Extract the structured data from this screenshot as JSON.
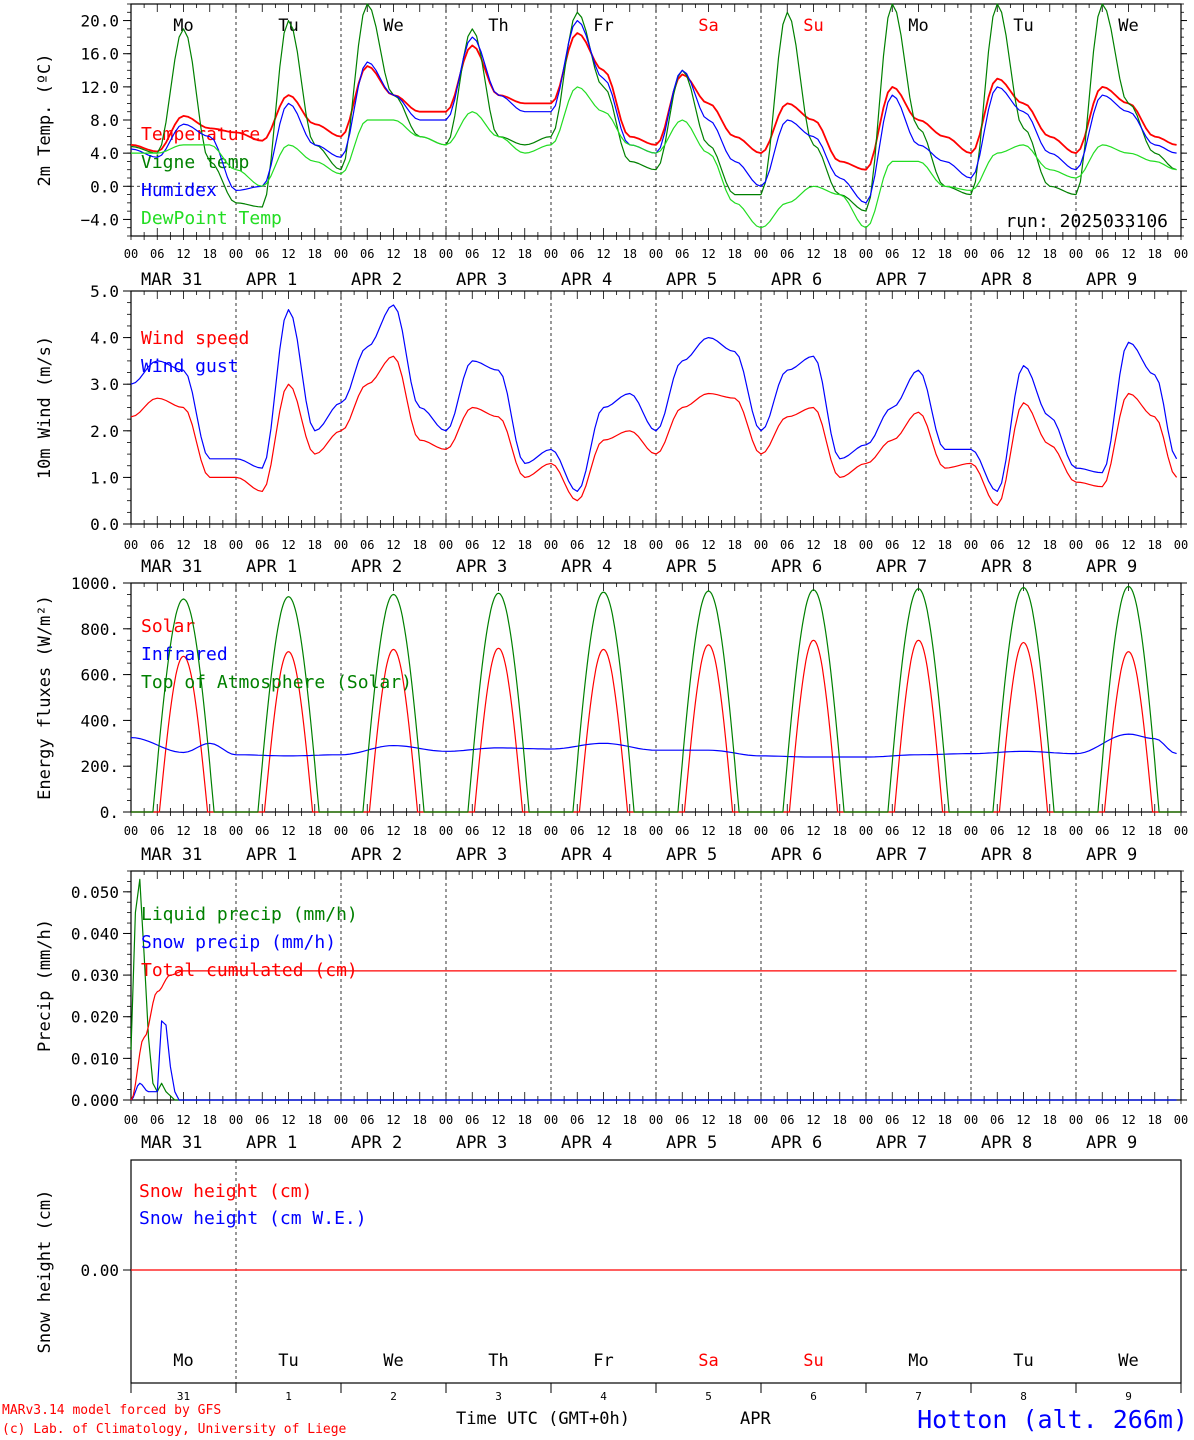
{
  "colors": {
    "red": "#ff0000",
    "blue": "#0000ff",
    "green": "#008000",
    "lightgreen": "#22dd22",
    "darkblue": "#0000cc",
    "weekend": "#ff0000"
  },
  "days": [
    {
      "name": "Mo",
      "date": "MAR 31",
      "num": "31",
      "weekend": false
    },
    {
      "name": "Tu",
      "date": "APR  1",
      "num": "1",
      "weekend": false
    },
    {
      "name": "We",
      "date": "APR  2",
      "num": "2",
      "weekend": false
    },
    {
      "name": "Th",
      "date": "APR  3",
      "num": "3",
      "weekend": false
    },
    {
      "name": "Fr",
      "date": "APR  4",
      "num": "4",
      "weekend": false
    },
    {
      "name": "Sa",
      "date": "APR  5",
      "num": "5",
      "weekend": true
    },
    {
      "name": "Su",
      "date": "APR  6",
      "num": "6",
      "weekend": true
    },
    {
      "name": "Mo",
      "date": "APR  7",
      "num": "7",
      "weekend": false
    },
    {
      "name": "Tu",
      "date": "APR  8",
      "num": "8",
      "weekend": false
    },
    {
      "name": "We",
      "date": "APR  9",
      "num": "9",
      "weekend": false
    }
  ],
  "hour_ticks": [
    "00",
    "06",
    "12",
    "18"
  ],
  "final_tick": "00",
  "run_label": "run: 2025033106",
  "footer": {
    "model": "MARv3.14 model forced by GFS",
    "lab": "(c) Lab. of Climatology, University of Liege",
    "time_axis": "Time UTC (GMT+0h)",
    "month": "APR",
    "station": "Hotton (alt. 266m)"
  },
  "chart_data": [
    {
      "type": "line",
      "ylabel": "2m Temp. (ºC)",
      "ylim": [
        -6,
        22
      ],
      "yticks": [
        -4,
        0,
        4,
        8,
        12,
        16,
        20
      ],
      "yticklabels": [
        "−4.0",
        "0.0",
        "4.0",
        "8.0",
        "12.0",
        "16.0",
        "20.0"
      ],
      "zero_line": true,
      "series": [
        {
          "name": "Temperature",
          "color": "red",
          "x": [
            0,
            6,
            12,
            18,
            24,
            30,
            36,
            42,
            48,
            54,
            60,
            66,
            72,
            78,
            84,
            90,
            96,
            102,
            108,
            114,
            120,
            126,
            132,
            138,
            144,
            150,
            156,
            162,
            168,
            174,
            180,
            186,
            192,
            198,
            204,
            210,
            216,
            222,
            228,
            234,
            239
          ],
          "values": [
            5,
            4.2,
            8.5,
            7,
            6.5,
            5.5,
            11,
            7.5,
            6,
            14.5,
            11,
            9,
            9,
            17,
            11,
            10,
            10,
            18.5,
            14,
            6,
            5,
            13.5,
            10,
            6,
            4,
            10,
            8,
            3,
            2,
            12,
            8,
            6,
            4,
            13,
            10,
            6,
            4,
            12,
            10,
            6,
            5
          ]
        },
        {
          "name": "Vigne temp",
          "color": "green",
          "x": [
            0,
            6,
            12,
            18,
            24,
            30,
            36,
            42,
            48,
            54,
            60,
            66,
            72,
            78,
            84,
            90,
            96,
            102,
            108,
            114,
            120,
            126,
            132,
            138,
            144,
            150,
            156,
            162,
            168,
            174,
            180,
            186,
            192,
            198,
            204,
            210,
            216,
            222,
            228,
            234,
            239
          ],
          "values": [
            4.8,
            4,
            19,
            3,
            -2,
            -2.5,
            20,
            5,
            2,
            22,
            11,
            6,
            5,
            19,
            6,
            5,
            6,
            21,
            12,
            3,
            2,
            14,
            5,
            -1,
            -1,
            21,
            5,
            -1,
            -3,
            22,
            7,
            0,
            -1,
            22,
            7,
            0,
            -1,
            22,
            10,
            4,
            2
          ]
        },
        {
          "name": "Humidex",
          "color": "blue",
          "x": [
            0,
            6,
            12,
            18,
            24,
            30,
            36,
            42,
            48,
            54,
            60,
            66,
            72,
            78,
            84,
            90,
            96,
            102,
            108,
            114,
            120,
            126,
            132,
            138,
            144,
            150,
            156,
            162,
            168,
            174,
            180,
            186,
            192,
            198,
            204,
            210,
            216,
            222,
            228,
            234,
            239
          ],
          "values": [
            4.5,
            3.5,
            7.5,
            6,
            -0.5,
            0,
            10,
            5,
            3.5,
            15,
            11,
            8,
            8,
            18,
            11,
            9,
            9,
            20,
            13,
            5,
            4,
            14,
            8,
            3,
            0,
            8,
            6,
            1,
            -2,
            11,
            5,
            3,
            1,
            12,
            9,
            4,
            2,
            11,
            9,
            5,
            4
          ]
        },
        {
          "name": "DewPoint Temp",
          "color": "lightgreen",
          "x": [
            0,
            6,
            12,
            18,
            24,
            30,
            36,
            42,
            48,
            54,
            60,
            66,
            72,
            78,
            84,
            90,
            96,
            102,
            108,
            114,
            120,
            126,
            132,
            138,
            144,
            150,
            156,
            162,
            168,
            174,
            180,
            186,
            192,
            198,
            204,
            210,
            216,
            222,
            228,
            234,
            239
          ],
          "values": [
            4,
            4,
            5,
            5,
            2,
            0,
            5,
            3,
            1.5,
            8,
            8,
            6,
            5,
            9,
            6,
            4,
            5,
            12,
            9,
            5,
            4,
            8,
            4,
            -2,
            -5,
            -2,
            0,
            -1,
            -5,
            3,
            3,
            0,
            -0.5,
            4,
            5,
            2,
            1,
            5,
            4,
            3,
            2
          ]
        }
      ]
    },
    {
      "type": "line",
      "ylabel": "10m Wind (m/s)",
      "ylim": [
        0,
        5
      ],
      "yticks": [
        0,
        1,
        2,
        3,
        4,
        5
      ],
      "yticklabels": [
        "0.0",
        "1.0",
        "2.0",
        "3.0",
        "4.0",
        "5.0"
      ],
      "series": [
        {
          "name": "Wind speed",
          "color": "red",
          "x": [
            0,
            6,
            12,
            18,
            24,
            30,
            36,
            42,
            48,
            54,
            60,
            66,
            72,
            78,
            84,
            90,
            96,
            102,
            108,
            114,
            120,
            126,
            132,
            138,
            144,
            150,
            156,
            162,
            168,
            174,
            180,
            186,
            192,
            198,
            204,
            210,
            216,
            222,
            228,
            234,
            239
          ],
          "values": [
            2.3,
            2.7,
            2.5,
            1.0,
            1.0,
            0.7,
            3.0,
            1.5,
            2.0,
            3.0,
            3.6,
            1.8,
            1.6,
            2.5,
            2.3,
            1.0,
            1.3,
            0.5,
            1.8,
            2.0,
            1.5,
            2.5,
            2.8,
            2.7,
            1.5,
            2.3,
            2.5,
            1.0,
            1.3,
            1.8,
            2.4,
            1.2,
            1.3,
            0.4,
            2.6,
            1.7,
            0.9,
            0.8,
            2.8,
            2.3,
            1.0
          ]
        },
        {
          "name": "Wind gust",
          "color": "blue",
          "x": [
            0,
            6,
            12,
            18,
            24,
            30,
            36,
            42,
            48,
            54,
            60,
            66,
            72,
            78,
            84,
            90,
            96,
            102,
            108,
            114,
            120,
            126,
            132,
            138,
            144,
            150,
            156,
            162,
            168,
            174,
            180,
            186,
            192,
            198,
            204,
            210,
            216,
            222,
            228,
            234,
            239
          ],
          "values": [
            3.0,
            3.5,
            3.3,
            1.4,
            1.4,
            1.2,
            4.6,
            2.0,
            2.6,
            3.8,
            4.7,
            2.5,
            2.0,
            3.5,
            3.3,
            1.3,
            1.6,
            0.7,
            2.5,
            2.8,
            2.0,
            3.5,
            4.0,
            3.7,
            2.0,
            3.3,
            3.6,
            1.4,
            1.7,
            2.5,
            3.3,
            1.6,
            1.6,
            0.7,
            3.4,
            2.3,
            1.2,
            1.1,
            3.9,
            3.2,
            1.4
          ]
        }
      ]
    },
    {
      "type": "line",
      "ylabel": "Energy fluxes (W/m²)",
      "ylim": [
        0,
        1000
      ],
      "yticks": [
        0,
        200,
        400,
        600,
        800,
        1000
      ],
      "yticklabels": [
        "0.",
        "200.",
        "400.",
        "600.",
        "800.",
        "1000."
      ],
      "series": [
        {
          "name": "Solar",
          "color": "red",
          "peak_hours": [
            12,
            36,
            60,
            84,
            108,
            132,
            156,
            180,
            204,
            228
          ],
          "peaks": [
            680,
            700,
            710,
            715,
            710,
            730,
            750,
            750,
            740,
            700
          ]
        },
        {
          "name": "Infrared",
          "color": "blue",
          "x": [
            0,
            12,
            18,
            24,
            36,
            48,
            60,
            72,
            84,
            96,
            108,
            120,
            132,
            144,
            156,
            168,
            180,
            192,
            204,
            216,
            228,
            234,
            239
          ],
          "values": [
            325,
            260,
            300,
            250,
            245,
            250,
            290,
            265,
            280,
            275,
            300,
            270,
            270,
            245,
            240,
            240,
            250,
            255,
            265,
            255,
            340,
            320,
            255
          ]
        },
        {
          "name": "Top of Atmosphere (Solar)",
          "color": "green",
          "peak_hours": [
            12,
            36,
            60,
            84,
            108,
            132,
            156,
            180,
            204,
            228
          ],
          "peaks": [
            930,
            940,
            950,
            955,
            960,
            965,
            970,
            975,
            980,
            985
          ]
        }
      ]
    },
    {
      "type": "line",
      "ylabel": "Precip (mm/h)",
      "ylim": [
        0,
        0.055
      ],
      "yticks": [
        0,
        0.01,
        0.02,
        0.03,
        0.04,
        0.05
      ],
      "yticklabels": [
        "0.000",
        "0.010",
        "0.020",
        "0.030",
        "0.040",
        "0.050"
      ],
      "series": [
        {
          "name": "Liquid precip (mm/h)",
          "color": "green",
          "x": [
            0,
            1,
            2,
            3,
            4,
            5,
            6,
            7,
            8,
            9,
            10,
            11,
            12,
            14,
            239
          ],
          "values": [
            0.012,
            0.045,
            0.053,
            0.035,
            0.015,
            0.004,
            0.002,
            0.004,
            0.002,
            0.001,
            0,
            0,
            0,
            0,
            0
          ]
        },
        {
          "name": "Snow precip (mm/h)",
          "color": "blue",
          "x": [
            0,
            2,
            4,
            6,
            7,
            8,
            9,
            10,
            11,
            12,
            14,
            239
          ],
          "values": [
            0,
            0.004,
            0.002,
            0.002,
            0.019,
            0.018,
            0.008,
            0.002,
            0,
            0,
            0,
            0
          ]
        },
        {
          "name": "Total cumulated (cm)",
          "color": "red",
          "x": [
            0,
            3,
            6,
            9,
            12,
            24,
            239
          ],
          "values": [
            0,
            0.015,
            0.026,
            0.03,
            0.031,
            0.031,
            0.031
          ]
        }
      ]
    },
    {
      "type": "line",
      "ylabel": "Snow height (cm)",
      "yticks": [
        0
      ],
      "yticklabels": [
        "0.00"
      ],
      "series": [
        {
          "name": "Snow height (cm)",
          "color": "red",
          "x": [
            0,
            239
          ],
          "values": [
            0,
            0
          ]
        },
        {
          "name": "Snow height (cm W.E.)",
          "color": "blue",
          "x": [
            0,
            239
          ],
          "values": [
            0,
            0
          ]
        }
      ]
    }
  ]
}
